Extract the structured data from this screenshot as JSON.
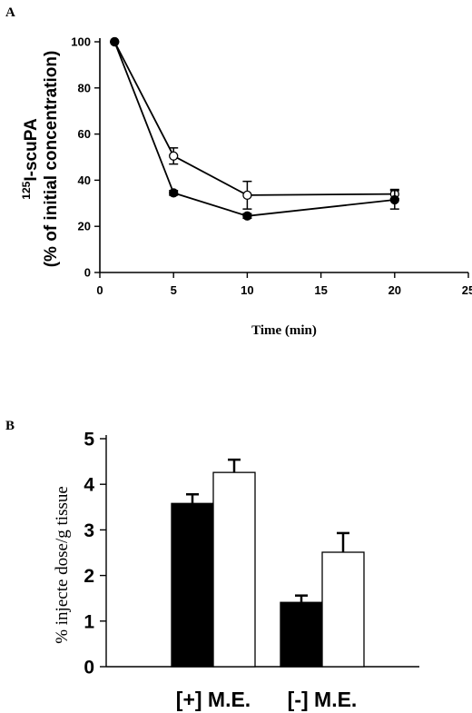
{
  "chart_data": [
    {
      "panel": "A",
      "type": "line",
      "xlabel": "Time (min)",
      "ylabel_prefix": "125",
      "ylabel_main": "I-scuPA",
      "ylabel_line2": "(% of initial concentration)",
      "xlim": [
        0,
        25
      ],
      "ylim": [
        0,
        100
      ],
      "xticks": [
        0,
        5,
        10,
        15,
        20,
        25
      ],
      "yticks": [
        0,
        20,
        40,
        60,
        80,
        100
      ],
      "series": [
        {
          "marker": "open",
          "x": [
            1,
            5,
            10,
            20
          ],
          "y": [
            100,
            50.5,
            33.5,
            34
          ],
          "err": [
            0,
            3.5,
            6,
            2
          ]
        },
        {
          "marker": "filled",
          "x": [
            1,
            5,
            10,
            20
          ],
          "y": [
            100,
            34.5,
            24.5,
            31.5
          ],
          "err": [
            0,
            1,
            1,
            4
          ]
        }
      ]
    },
    {
      "panel": "B",
      "type": "bar",
      "ylabel": "% injecte dose/g tissue",
      "ylim": [
        0,
        5
      ],
      "yticks": [
        0,
        1,
        2,
        3,
        4,
        5
      ],
      "categories": [
        "[+] M.E.",
        "[-] M.E."
      ],
      "series": [
        {
          "fill": "black",
          "values": [
            3.58,
            1.41
          ],
          "err": [
            0.2,
            0.15
          ]
        },
        {
          "fill": "white",
          "values": [
            4.26,
            2.51
          ],
          "err": [
            0.28,
            0.42
          ]
        }
      ]
    }
  ]
}
